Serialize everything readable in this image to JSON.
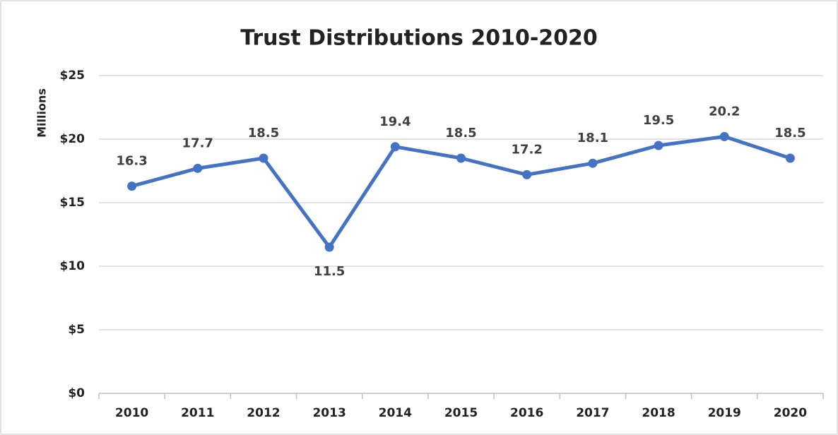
{
  "chart_data": {
    "type": "line",
    "title": "Trust Distributions 2010-2020",
    "y_label": "Millions",
    "categories": [
      "2010",
      "2011",
      "2012",
      "2013",
      "2014",
      "2015",
      "2016",
      "2017",
      "2018",
      "2019",
      "2020"
    ],
    "series": [
      {
        "name": "Trust Distributions",
        "color": "#4472c4",
        "values": [
          16.3,
          17.7,
          18.5,
          11.5,
          19.4,
          18.5,
          17.2,
          18.1,
          19.5,
          20.2,
          18.5
        ]
      }
    ],
    "ylim": [
      0,
      25
    ],
    "yticks": [
      {
        "value": 0,
        "label": "$0"
      },
      {
        "value": 5,
        "label": "$5"
      },
      {
        "value": 10,
        "label": "$10"
      },
      {
        "value": 15,
        "label": "$15"
      },
      {
        "value": 20,
        "label": "$20"
      },
      {
        "value": 25,
        "label": "$25"
      }
    ],
    "grid": true
  }
}
